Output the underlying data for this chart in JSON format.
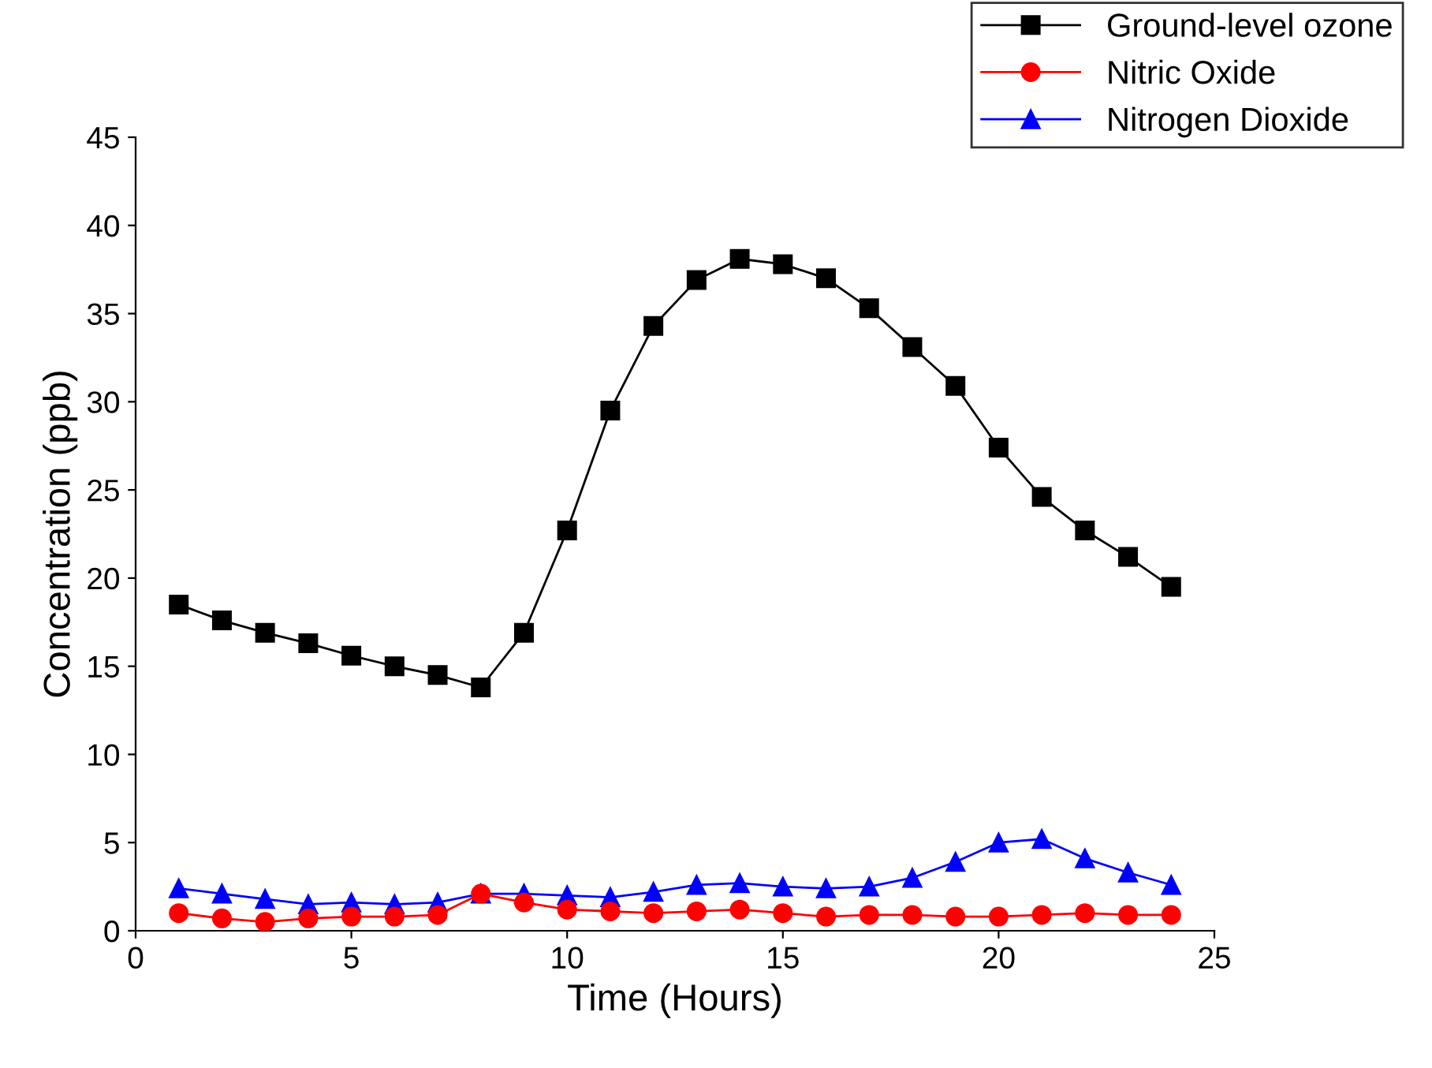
{
  "chart_data": {
    "type": "line",
    "xlabel": "Time (Hours)",
    "ylabel": "Concentration (ppb)",
    "x": [
      1,
      2,
      3,
      4,
      5,
      6,
      7,
      8,
      9,
      10,
      11,
      12,
      13,
      14,
      15,
      16,
      17,
      18,
      19,
      20,
      21,
      22,
      23,
      24
    ],
    "series": [
      {
        "name": "Ground-level ozone",
        "color": "#000000",
        "marker": "square",
        "values": [
          18.5,
          17.6,
          16.9,
          16.3,
          15.6,
          15.0,
          14.5,
          13.8,
          16.9,
          22.7,
          29.5,
          34.3,
          36.9,
          38.1,
          37.8,
          37.0,
          35.3,
          33.1,
          30.9,
          27.4,
          24.6,
          22.7,
          21.2,
          19.5
        ]
      },
      {
        "name": "Nitric Oxide",
        "color": "#ff0000",
        "marker": "circle",
        "values": [
          1.0,
          0.7,
          0.5,
          0.7,
          0.8,
          0.8,
          0.9,
          2.1,
          1.6,
          1.2,
          1.1,
          1.0,
          1.1,
          1.2,
          1.0,
          0.8,
          0.9,
          0.9,
          0.8,
          0.8,
          0.9,
          1.0,
          0.9,
          0.9
        ]
      },
      {
        "name": "Nitrogen Dioxide",
        "color": "#0000ff",
        "marker": "triangle",
        "values": [
          2.4,
          2.1,
          1.8,
          1.5,
          1.6,
          1.5,
          1.6,
          2.1,
          2.1,
          2.0,
          1.9,
          2.2,
          2.6,
          2.7,
          2.5,
          2.4,
          2.5,
          3.0,
          3.9,
          5.0,
          5.2,
          4.1,
          3.3,
          2.6
        ]
      }
    ],
    "xlim": [
      0,
      25
    ],
    "xticks": [
      0,
      5,
      10,
      15,
      20,
      25
    ],
    "ylim": [
      0,
      45
    ],
    "yticks": [
      0,
      5,
      10,
      15,
      20,
      25,
      30,
      35,
      40,
      45
    ],
    "grid": false,
    "legend": "top right",
    "line_style": "solid"
  }
}
